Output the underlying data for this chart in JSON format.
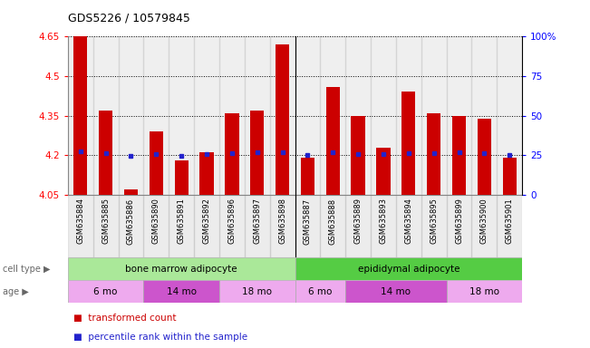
{
  "title": "GDS5226 / 10579845",
  "samples": [
    "GSM635884",
    "GSM635885",
    "GSM635886",
    "GSM635890",
    "GSM635891",
    "GSM635892",
    "GSM635896",
    "GSM635897",
    "GSM635898",
    "GSM635887",
    "GSM635888",
    "GSM635889",
    "GSM635893",
    "GSM635894",
    "GSM635895",
    "GSM635899",
    "GSM635900",
    "GSM635901"
  ],
  "bar_values": [
    4.65,
    4.37,
    4.07,
    4.29,
    4.18,
    4.21,
    4.36,
    4.37,
    4.62,
    4.19,
    4.46,
    4.35,
    4.23,
    4.44,
    4.36,
    4.35,
    4.34,
    4.19
  ],
  "blue_values": [
    4.215,
    4.207,
    4.197,
    4.205,
    4.197,
    4.206,
    4.207,
    4.212,
    4.213,
    4.202,
    4.213,
    4.203,
    4.203,
    4.208,
    4.207,
    4.213,
    4.207,
    4.202
  ],
  "ymin": 4.05,
  "ymax": 4.65,
  "yticks": [
    4.05,
    4.2,
    4.35,
    4.5,
    4.65
  ],
  "ytick_labels": [
    "4.05",
    "4.2",
    "4.35",
    "4.5",
    "4.65"
  ],
  "right_yticks_pct": [
    0,
    25,
    50,
    75,
    100
  ],
  "right_ytick_labels": [
    "0",
    "25",
    "50",
    "75",
    "100%"
  ],
  "bar_color": "#cc0000",
  "blue_color": "#2222cc",
  "bar_bottom": 4.05,
  "cell_type_groups": [
    {
      "label": "bone marrow adipocyte",
      "start": 0,
      "end": 9,
      "color": "#aae899"
    },
    {
      "label": "epididymal adipocyte",
      "start": 9,
      "end": 18,
      "color": "#55cc44"
    }
  ],
  "age_groups": [
    {
      "label": "6 mo",
      "start": 0,
      "end": 3,
      "color": "#eeaaee"
    },
    {
      "label": "14 mo",
      "start": 3,
      "end": 6,
      "color": "#cc55cc"
    },
    {
      "label": "18 mo",
      "start": 6,
      "end": 9,
      "color": "#eeaaee"
    },
    {
      "label": "6 mo",
      "start": 9,
      "end": 11,
      "color": "#eeaaee"
    },
    {
      "label": "14 mo",
      "start": 11,
      "end": 15,
      "color": "#cc55cc"
    },
    {
      "label": "18 mo",
      "start": 15,
      "end": 18,
      "color": "#eeaaee"
    }
  ],
  "legend_items": [
    {
      "label": "transformed count",
      "color": "#cc0000"
    },
    {
      "label": "percentile rank within the sample",
      "color": "#2222cc"
    }
  ],
  "cell_type_label": "cell type",
  "age_label": "age",
  "separator_index": 8.5
}
